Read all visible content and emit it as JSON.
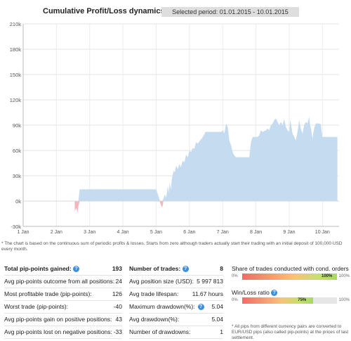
{
  "header": {
    "title": "Cumulative Profit/Loss dynamics ($)",
    "period": "Selected period: 01.01.2015 - 10.01.2015"
  },
  "chart_data": {
    "type": "area",
    "title": "Cumulative Profit/Loss dynamics ($)",
    "xlabel": "",
    "ylabel": "",
    "xlim": [
      1,
      10.5
    ],
    "ylim": [
      -30000,
      210000
    ],
    "yticks": [
      -30000,
      0,
      30000,
      60000,
      90000,
      120000,
      150000,
      180000,
      210000
    ],
    "ytick_labels": [
      "-30k",
      "0k",
      "30k",
      "60k",
      "90k",
      "120k",
      "150k",
      "180k",
      "210k"
    ],
    "xticks": [
      1,
      2,
      3,
      4,
      5,
      6,
      7,
      8,
      9,
      10
    ],
    "xtick_labels": [
      "1 Jan",
      "2 Jan",
      "3 Jan",
      "4 Jan",
      "5 Jan",
      "6 Jan",
      "7 Jan",
      "8 Jan",
      "9 Jan",
      "10 Jan"
    ],
    "grid": true,
    "positive_color": "#c5dbf0",
    "negative_color": "#f4b6bc",
    "x": [
      2.55,
      2.6,
      2.63,
      2.66,
      2.7,
      5.0,
      5.05,
      5.1,
      5.13,
      5.18,
      5.22,
      5.26,
      5.3,
      5.35,
      5.38,
      5.41,
      5.44,
      5.47,
      5.5,
      5.53,
      5.56,
      5.6,
      5.65,
      5.7,
      5.74,
      5.8,
      5.85,
      5.9,
      5.95,
      6.0,
      6.05,
      6.1,
      6.15,
      6.2,
      6.25,
      6.3,
      6.35,
      6.4,
      6.45,
      6.48,
      6.5,
      6.53,
      6.56,
      6.59,
      6.62,
      6.65,
      6.68,
      6.72,
      6.76,
      6.8,
      6.84,
      6.88,
      6.92,
      6.96,
      7.0,
      7.05,
      7.1,
      7.15,
      7.2,
      7.25,
      7.3,
      7.35,
      7.4,
      7.45,
      7.5,
      7.55,
      7.6,
      7.65,
      7.7,
      7.75,
      7.8,
      7.85,
      7.9,
      7.95,
      8.0,
      8.05,
      8.1,
      8.15,
      8.2,
      8.25,
      8.3,
      8.35,
      8.4,
      8.45,
      8.5,
      8.55,
      8.6,
      8.65,
      8.7,
      8.75,
      8.8,
      8.85,
      8.9,
      8.95,
      9.0,
      9.03,
      9.06,
      9.1,
      9.15,
      9.2,
      9.25,
      9.3,
      9.35,
      9.4,
      9.45,
      9.5,
      9.55,
      9.6,
      9.63,
      9.66,
      9.7,
      9.75,
      9.8,
      9.85,
      9.9,
      9.95,
      10.0,
      10.1,
      10.2,
      10.3,
      10.4,
      10.45
    ],
    "y": [
      -12000,
      -8000,
      -14000,
      -6000,
      14000,
      14000,
      8000,
      2000,
      -3000,
      -8000,
      3000,
      8000,
      4000,
      18000,
      10000,
      22000,
      13000,
      26000,
      32000,
      36000,
      34000,
      42000,
      38000,
      44000,
      40000,
      48000,
      46000,
      55000,
      52000,
      60000,
      58000,
      63000,
      62000,
      70000,
      68000,
      71000,
      73000,
      76000,
      79000,
      82000,
      82000,
      82000,
      82000,
      82000,
      82000,
      82000,
      82000,
      82000,
      82000,
      82000,
      82000,
      82000,
      82000,
      82000,
      84000,
      80000,
      92000,
      88000,
      72000,
      66000,
      58000,
      54000,
      52000,
      52000,
      52000,
      52000,
      52000,
      52000,
      52000,
      52000,
      52000,
      70000,
      76000,
      76000,
      76000,
      76000,
      78000,
      84000,
      82000,
      83000,
      84000,
      86000,
      84000,
      90000,
      92000,
      96000,
      98000,
      94000,
      90000,
      94000,
      90000,
      97000,
      88000,
      84000,
      82000,
      96000,
      90000,
      80000,
      76000,
      72000,
      82000,
      96000,
      86000,
      80000,
      90000,
      94000,
      92000,
      100000,
      90000,
      85000,
      74000,
      86000,
      92000,
      92000,
      92000,
      91000,
      76000,
      76000,
      76000,
      76000,
      76000,
      76000
    ]
  },
  "chart_footnote": "* The chart is based on the continuous sum of periodic profits & losses. Starts from zero although traders actually start their trading with an initial deposit of 100,000 USD every month.",
  "left_stats": {
    "header_label": "Total pip-points gained:",
    "header_value": "193",
    "rows": [
      {
        "label": "Avg pip-points outcome from all positions:",
        "value": "24"
      },
      {
        "label": "Most profitable trade (pip-points):",
        "value": "126"
      },
      {
        "label": "Worst trade (pip-points):",
        "value": "-40"
      },
      {
        "label": "Avg pip-points gain on positive positions:",
        "value": "43"
      },
      {
        "label": "Avg pip-points lost on negative positions:",
        "value": "-33"
      }
    ]
  },
  "mid_stats": {
    "header_label": "Number of trades:",
    "header_value": "8",
    "rows": [
      {
        "label": "Avg position size (USD):",
        "value": "5 997 813"
      },
      {
        "label": "Avg trade lifespan:",
        "value": "11.67 hours"
      },
      {
        "label": "Maximum drawdown(%):",
        "value": "5.04"
      },
      {
        "label": "Avg drawdown(%):",
        "value": "5.04"
      },
      {
        "label": "Number of drawdowns:",
        "value": "1"
      }
    ]
  },
  "right_stats": {
    "cond_orders_label": "Share of trades conducted with cond. orders",
    "cond_orders_min": "0%",
    "cond_orders_value": "100%",
    "cond_orders_max": "100%",
    "cond_orders_fraction": 1.0,
    "winloss_label": "Win/Loss ratio",
    "winloss_min": "0%",
    "winloss_value": "75%",
    "winloss_max": "100%",
    "winloss_fraction": 0.75,
    "note": "* All pips from different currency pairs are converted to EUR/USD pips (also called pip-points) at the prices of last settlement."
  }
}
